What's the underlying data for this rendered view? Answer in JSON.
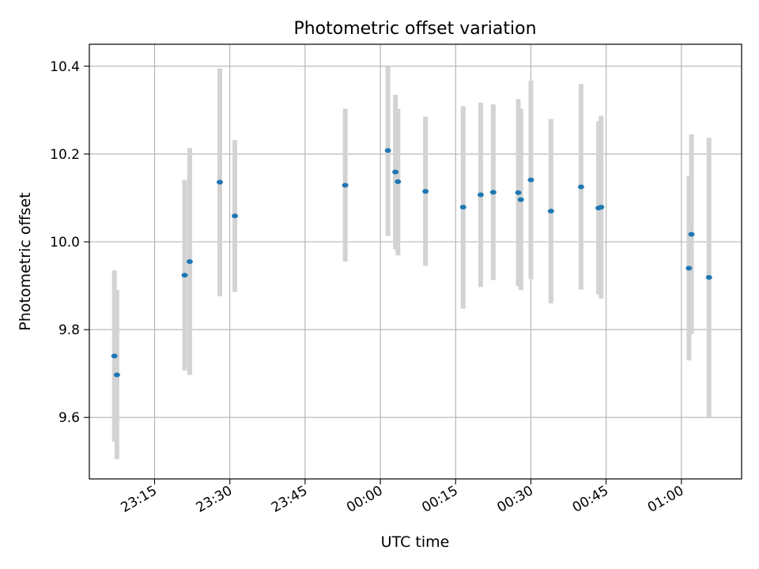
{
  "chart_data": {
    "type": "scatter",
    "title": "Photometric offset variation",
    "xlabel": "UTC time",
    "ylabel": "Photometric offset",
    "x_axis": {
      "start": "23:00",
      "range": [
        "23:02",
        "01:12"
      ],
      "ticks": [
        "23:15",
        "23:30",
        "23:45",
        "00:00",
        "00:15",
        "00:30",
        "00:45",
        "01:00"
      ]
    },
    "y_axis": {
      "range": [
        9.46,
        10.45
      ],
      "ticks": [
        "9.6",
        "9.8",
        "10.0",
        "10.2",
        "10.4"
      ]
    },
    "grid": true,
    "colors": {
      "points": "#1f77b4",
      "errorbars": "#d3d3d3",
      "grid": "#b0b0b0"
    },
    "points": [
      {
        "time": "23:07",
        "value": 9.74,
        "low": 9.545,
        "high": 9.935
      },
      {
        "time": "23:07.5",
        "value": 9.697,
        "low": 9.505,
        "high": 9.89
      },
      {
        "time": "23:21",
        "value": 9.924,
        "low": 9.707,
        "high": 10.141
      },
      {
        "time": "23:22",
        "value": 9.955,
        "low": 9.697,
        "high": 10.214
      },
      {
        "time": "23:28",
        "value": 10.136,
        "low": 9.876,
        "high": 10.395
      },
      {
        "time": "23:31",
        "value": 10.059,
        "low": 9.886,
        "high": 10.232
      },
      {
        "time": "23:53",
        "value": 10.129,
        "low": 9.955,
        "high": 10.303
      },
      {
        "time": "00:01.5",
        "value": 10.208,
        "low": 10.013,
        "high": 10.399
      },
      {
        "time": "00:03",
        "value": 10.159,
        "low": 9.983,
        "high": 10.335
      },
      {
        "time": "00:03.5",
        "value": 10.137,
        "low": 9.969,
        "high": 10.303
      },
      {
        "time": "00:09",
        "value": 10.115,
        "low": 9.945,
        "high": 10.285
      },
      {
        "time": "00:16.5",
        "value": 10.079,
        "low": 9.848,
        "high": 10.309
      },
      {
        "time": "00:20",
        "value": 10.107,
        "low": 9.897,
        "high": 10.317
      },
      {
        "time": "00:22.5",
        "value": 10.113,
        "low": 9.913,
        "high": 10.313
      },
      {
        "time": "00:27.5",
        "value": 10.112,
        "low": 9.899,
        "high": 10.325
      },
      {
        "time": "00:28",
        "value": 10.096,
        "low": 9.89,
        "high": 10.303
      },
      {
        "time": "00:30",
        "value": 10.141,
        "low": 9.915,
        "high": 10.367
      },
      {
        "time": "00:34",
        "value": 10.07,
        "low": 9.86,
        "high": 10.28
      },
      {
        "time": "00:40",
        "value": 10.125,
        "low": 9.891,
        "high": 10.359
      },
      {
        "time": "00:43.5",
        "value": 10.077,
        "low": 9.88,
        "high": 10.275
      },
      {
        "time": "00:44",
        "value": 10.079,
        "low": 9.871,
        "high": 10.287
      },
      {
        "time": "01:01.5",
        "value": 9.94,
        "low": 9.73,
        "high": 10.15
      },
      {
        "time": "01:02",
        "value": 10.017,
        "low": 9.79,
        "high": 10.245
      },
      {
        "time": "01:05.5",
        "value": 9.919,
        "low": 9.602,
        "high": 10.237
      }
    ]
  }
}
